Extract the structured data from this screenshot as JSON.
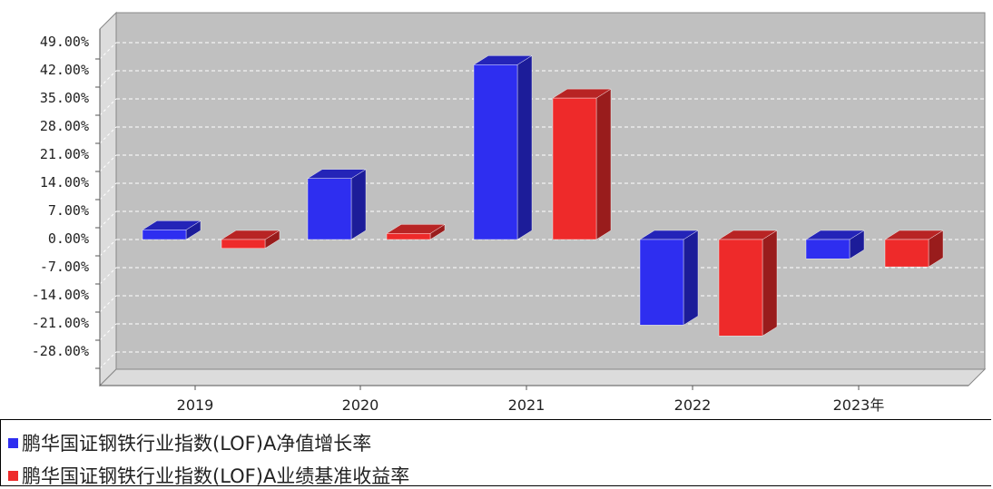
{
  "chart_data": {
    "type": "bar",
    "categories": [
      "2019",
      "2020",
      "2021",
      "2022",
      "2023年"
    ],
    "series": [
      {
        "name": "鹏华国证钢铁行业指数(LOF)A净值增长率",
        "values": [
          2.4,
          15.2,
          43.5,
          -21.3,
          -4.8
        ],
        "color": "#2e2ef0"
      },
      {
        "name": "鹏华国证钢铁行业指数(LOF)A业绩基准收益率",
        "values": [
          -2.2,
          1.5,
          35.2,
          -24.0,
          -6.8
        ],
        "color": "#ee2a2a"
      }
    ],
    "yticks": [
      "49.00%",
      "42.00%",
      "35.00%",
      "28.00%",
      "21.00%",
      "14.00%",
      "7.00%",
      "0.00%",
      "-7.00%",
      "-14.00%",
      "-21.00%",
      "-28.00%"
    ],
    "ylim": [
      -33,
      54
    ],
    "grid": true,
    "legend_placement": "bottom-left"
  }
}
